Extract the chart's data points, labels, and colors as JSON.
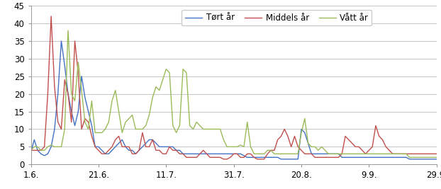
{
  "legend_labels": [
    "Tørt år",
    "Middels år",
    "Vått år"
  ],
  "colors": [
    "#4472C4",
    "#C0504D",
    "#9BBB59"
  ],
  "ylim": [
    0,
    45
  ],
  "yticks": [
    0,
    5,
    10,
    15,
    20,
    25,
    30,
    35,
    40,
    45
  ],
  "xtick_labels": [
    "1.6.",
    "21.6.",
    "11.7.",
    "31.7.",
    "20.8.",
    "9.9.",
    "29.9."
  ],
  "xtick_positions": [
    0,
    20,
    40,
    60,
    80,
    100,
    120
  ],
  "background_color": "#ffffff",
  "grid_color": "#bbbbbb",
  "linewidth": 1.0,
  "tort_ar": [
    3.5,
    7,
    4,
    3,
    2.5,
    3,
    5,
    10,
    20,
    35,
    28,
    20,
    15,
    11,
    15,
    25,
    19,
    15,
    11,
    5,
    5,
    4,
    3,
    3,
    4,
    5,
    6,
    7,
    5,
    4,
    4,
    3,
    4,
    5,
    6,
    7,
    7,
    6,
    5,
    5,
    5,
    5,
    5,
    4,
    4,
    3,
    3,
    3,
    3,
    3,
    3,
    3,
    3,
    3,
    3,
    3,
    3,
    3,
    3,
    3,
    3,
    3,
    3,
    2.5,
    2,
    2,
    2,
    2,
    2,
    2,
    2,
    2,
    2,
    2,
    1.5,
    1.5,
    1.5,
    1.5,
    1.5,
    1.5,
    10,
    9,
    6,
    3,
    3,
    3,
    3,
    3,
    3,
    3,
    3,
    3,
    2,
    2,
    2,
    2,
    2,
    2,
    2,
    2,
    2,
    2,
    2,
    2,
    2,
    2,
    2,
    2,
    2,
    2,
    2,
    2,
    1.5,
    1.5,
    1.5,
    1.5,
    1.5,
    1.5,
    1.5,
    1.5,
    1.5
  ],
  "middels_ar": [
    4,
    4,
    4,
    4,
    5,
    20,
    42,
    22,
    12,
    10,
    24,
    20,
    12,
    35,
    26,
    10,
    13,
    12,
    8,
    5,
    4,
    3,
    3,
    4,
    5,
    7,
    8,
    5,
    5,
    5,
    3,
    3,
    4,
    9,
    5,
    5,
    7,
    4,
    4,
    3,
    3,
    5,
    4,
    4,
    3,
    3,
    2,
    2,
    2,
    2,
    3,
    4,
    3,
    2,
    2,
    2,
    2,
    1.5,
    1.5,
    2,
    3,
    3,
    2,
    2,
    3,
    3,
    2,
    1.5,
    1.5,
    1.5,
    3,
    4,
    4,
    7,
    8,
    10,
    8,
    5,
    8,
    5,
    4,
    3,
    3,
    3,
    2,
    2,
    2,
    2,
    2,
    2,
    2,
    2,
    3,
    8,
    7,
    6,
    5,
    5,
    4,
    3,
    4,
    5,
    11,
    8,
    7,
    5,
    4,
    3,
    3,
    3,
    3,
    3,
    3,
    3,
    3,
    3,
    3,
    3,
    3,
    3,
    3
  ],
  "vatt_ar": [
    4,
    5,
    5,
    4,
    4,
    5,
    5.5,
    5,
    5,
    5,
    10,
    38,
    20,
    18,
    29,
    21,
    12,
    10,
    18,
    9,
    9,
    9,
    10,
    12,
    18,
    21,
    15,
    9,
    12,
    13,
    14,
    10,
    10,
    10,
    11,
    14,
    19,
    22,
    21,
    24,
    27,
    26,
    11,
    9,
    11,
    27,
    26,
    11,
    10,
    12,
    11,
    10,
    10,
    10,
    10,
    10,
    10,
    7,
    5,
    5,
    5,
    5,
    5.5,
    5,
    12,
    5,
    3,
    3,
    3,
    3,
    4,
    4,
    3,
    3,
    3,
    3,
    3,
    3,
    3,
    3,
    9,
    13,
    6,
    5,
    5,
    4,
    5,
    4,
    3,
    3,
    3,
    3,
    3,
    3,
    3,
    3,
    3,
    3,
    3,
    3,
    3,
    3,
    3,
    3,
    3,
    3,
    3,
    3,
    3,
    3,
    3,
    3,
    2,
    2,
    2,
    2,
    2,
    2,
    2,
    2,
    2
  ]
}
